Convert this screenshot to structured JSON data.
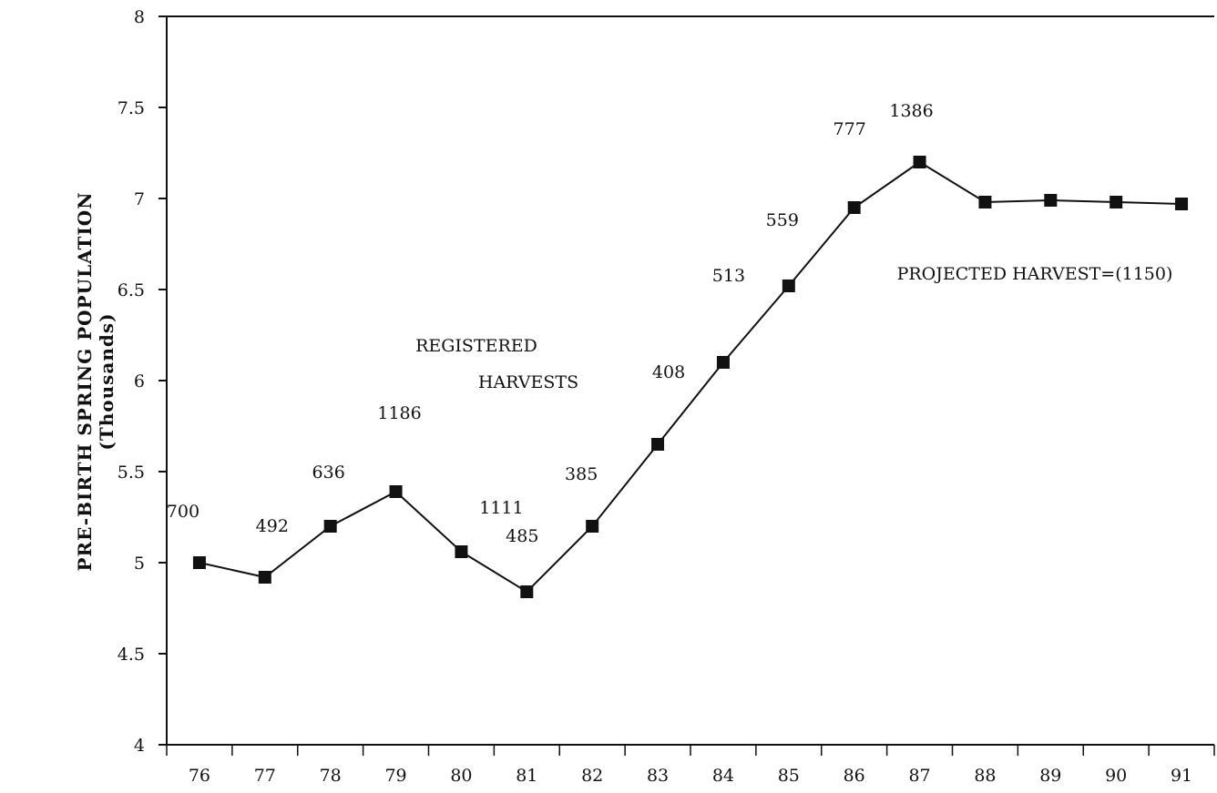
{
  "chart_data": {
    "type": "line",
    "title": "",
    "xlabel": "",
    "ylabel": "PRE-BIRTH SPRING POPULATION",
    "ylabel_sub": "(Thousands)",
    "ylim": [
      4,
      8
    ],
    "y_ticks": [
      "4",
      "4.5",
      "5",
      "5.5",
      "6",
      "6.5",
      "7",
      "7.5",
      "8"
    ],
    "y_tick_values": [
      4,
      4.5,
      5,
      5.5,
      6,
      6.5,
      7,
      7.5,
      8
    ],
    "categories": [
      "76",
      "77",
      "78",
      "79",
      "80",
      "81",
      "82",
      "83",
      "84",
      "85",
      "86",
      "87",
      "88",
      "89",
      "90",
      "91"
    ],
    "series": [
      {
        "values": [
          5.0,
          4.92,
          5.2,
          5.39,
          5.06,
          4.84,
          5.2,
          5.65,
          6.1,
          6.52,
          6.95,
          7.2,
          6.98,
          6.99,
          6.98,
          6.97
        ],
        "marker": "square",
        "color": "#111111"
      }
    ],
    "point_labels": [
      "700",
      "492",
      "636",
      "1186",
      "1111",
      "485",
      "385",
      "408",
      "513",
      "559",
      "777",
      "1386",
      "",
      "",
      "",
      ""
    ],
    "annotations": [
      {
        "id": "registered",
        "text": "REGISTERED"
      },
      {
        "id": "harvests",
        "text": "HARVESTS"
      },
      {
        "id": "projected",
        "text": "PROJECTED HARVEST=(1150)"
      }
    ],
    "grid": false,
    "legend": "none"
  }
}
